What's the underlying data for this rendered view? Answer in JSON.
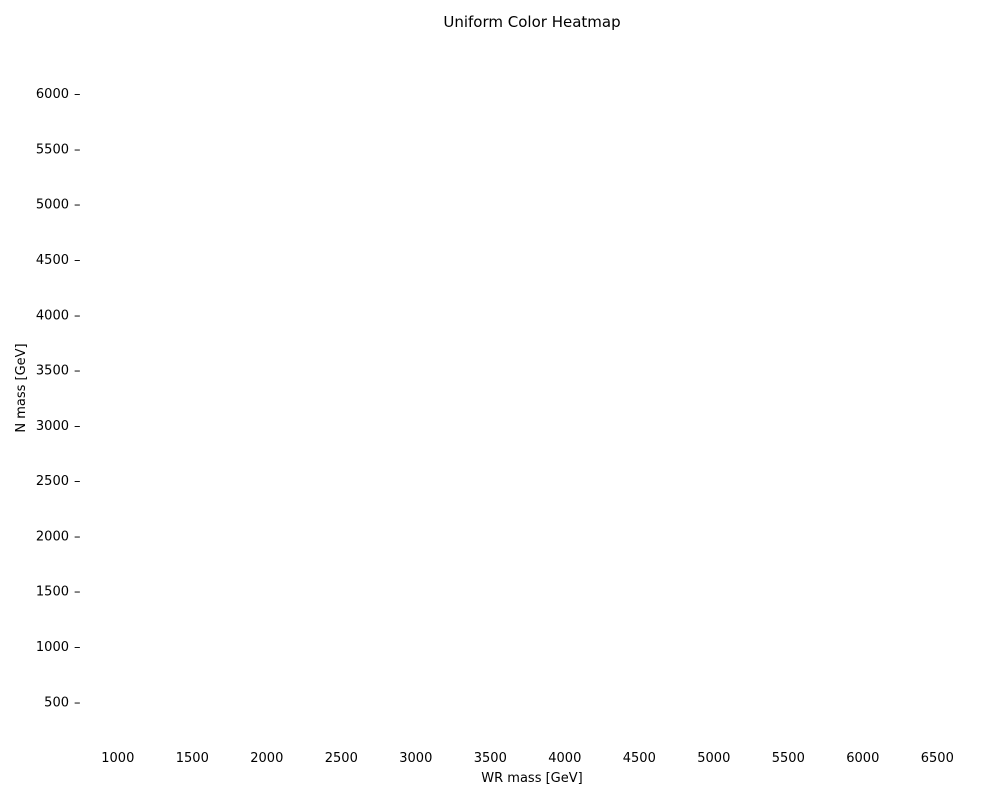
{
  "chart_data": {
    "type": "heatmap",
    "title": "Uniform Color Heatmap",
    "xlabel": "WR mass [GeV]",
    "ylabel": "N mass [GeV]",
    "x_ticks": [
      1000,
      1500,
      2000,
      2500,
      3000,
      3500,
      4000,
      4500,
      5000,
      5500,
      6000,
      6500
    ],
    "y_ticks": [
      500,
      1000,
      1500,
      2000,
      2500,
      3000,
      3500,
      4000,
      4500,
      5000,
      5500,
      6000
    ],
    "xlim": [
      780,
      6820
    ],
    "ylim": [
      150,
      6300
    ],
    "cell_color": "#ffffff",
    "grid": false
  }
}
